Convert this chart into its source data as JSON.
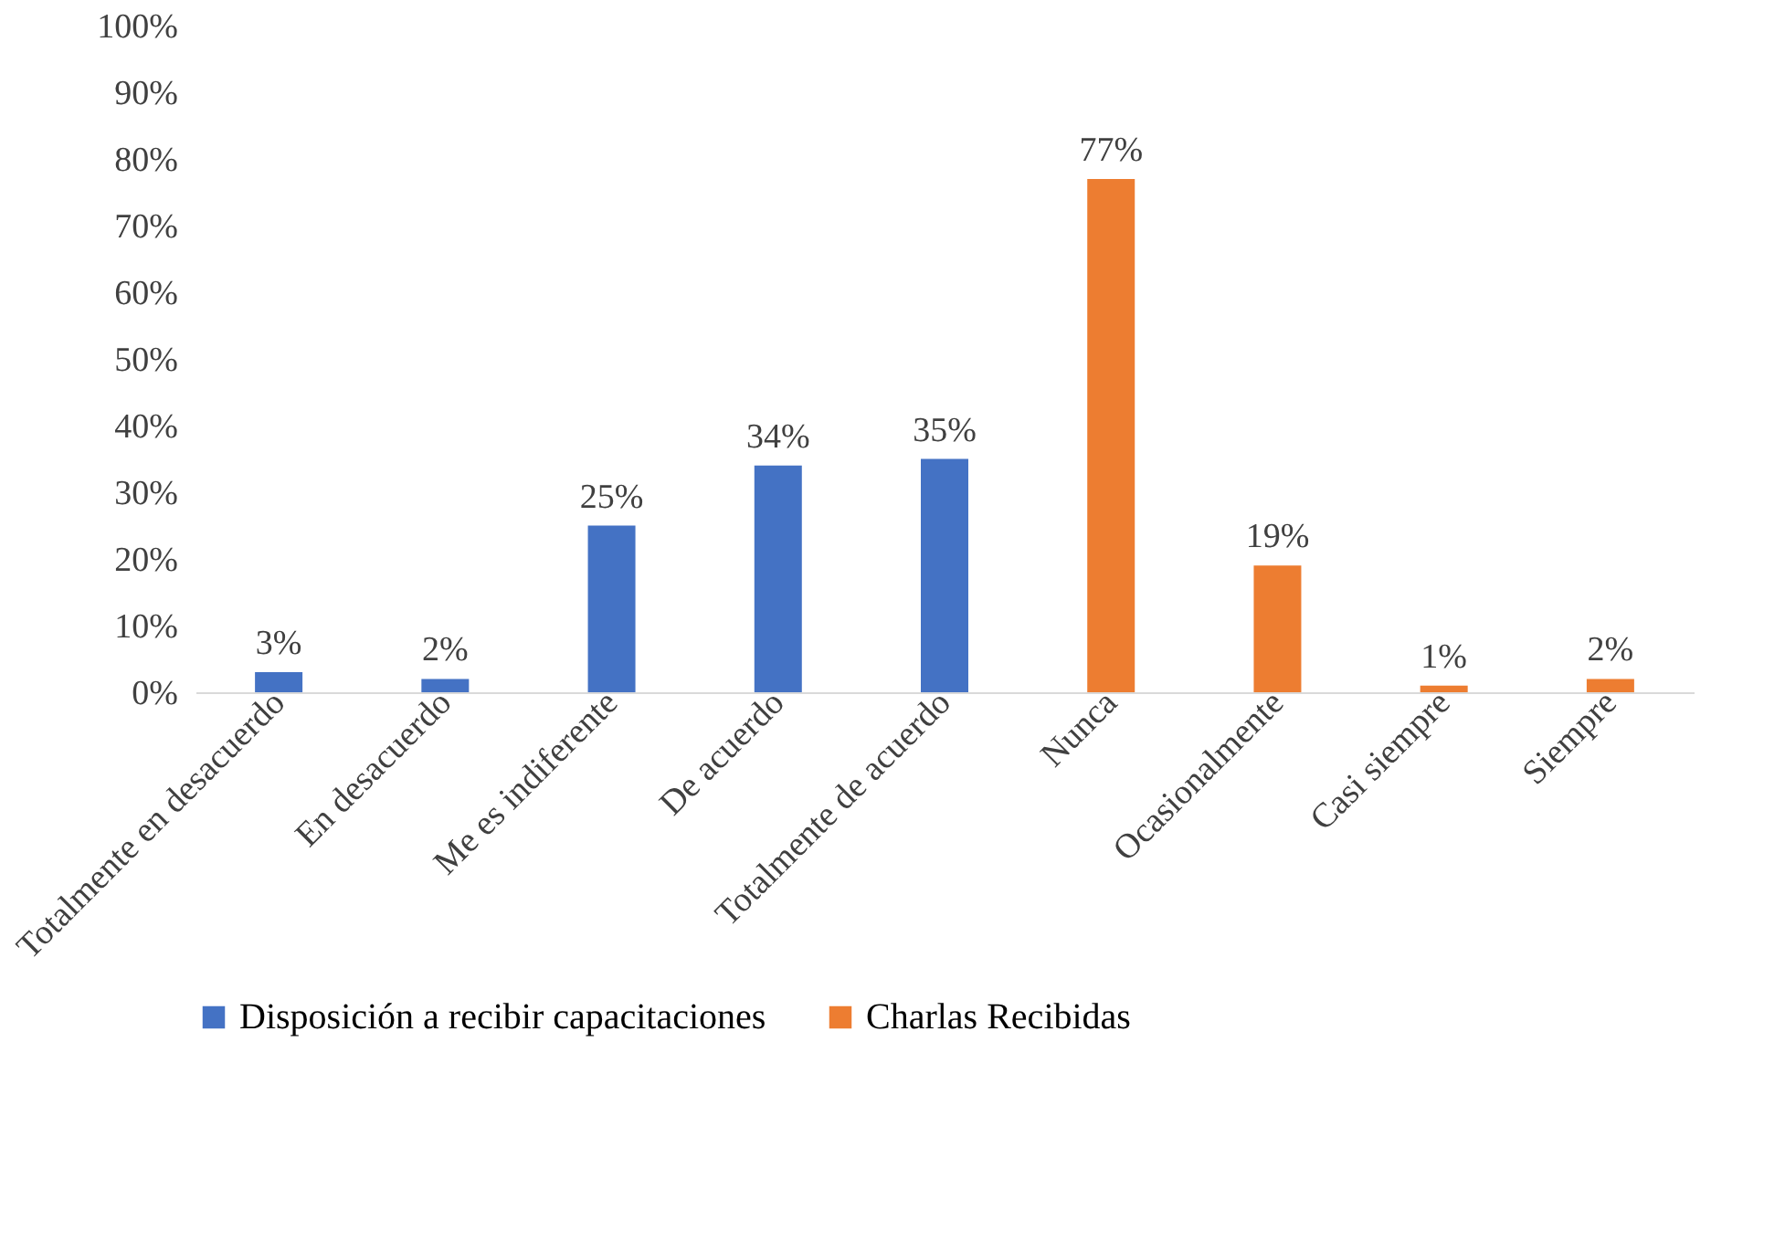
{
  "chart_data": {
    "type": "bar",
    "categories": [
      "Totalmente en desacuerdo",
      "En desacuerdo",
      "Me es indiferente",
      "De acuerdo",
      "Totalmente de acuerdo",
      "Nunca",
      "Ocasionalmente",
      "Casi siempre",
      "Siempre"
    ],
    "series": [
      {
        "name": "Disposición a recibir capacitaciones",
        "color": "#4472c4",
        "values": [
          3,
          2,
          25,
          34,
          35,
          null,
          null,
          null,
          null
        ],
        "value_labels": [
          "3%",
          "2%",
          "25%",
          "34%",
          "35%",
          null,
          null,
          null,
          null
        ]
      },
      {
        "name": "Charlas Recibidas",
        "color": "#ed7d31",
        "values": [
          null,
          null,
          null,
          null,
          null,
          77,
          19,
          1,
          2
        ],
        "value_labels": [
          null,
          null,
          null,
          null,
          null,
          "77%",
          "19%",
          "1%",
          "2%"
        ]
      }
    ],
    "ylim": [
      0,
      100
    ],
    "yticks": [
      {
        "value": 0,
        "label": "0%"
      },
      {
        "value": 10,
        "label": "10%"
      },
      {
        "value": 20,
        "label": "20%"
      },
      {
        "value": 30,
        "label": "30%"
      },
      {
        "value": 40,
        "label": "40%"
      },
      {
        "value": 50,
        "label": "50%"
      },
      {
        "value": 60,
        "label": "60%"
      },
      {
        "value": 70,
        "label": "70%"
      },
      {
        "value": 80,
        "label": "80%"
      },
      {
        "value": 90,
        "label": "90%"
      },
      {
        "value": 100,
        "label": "100%"
      }
    ],
    "grid": false,
    "legend": "bottom"
  }
}
